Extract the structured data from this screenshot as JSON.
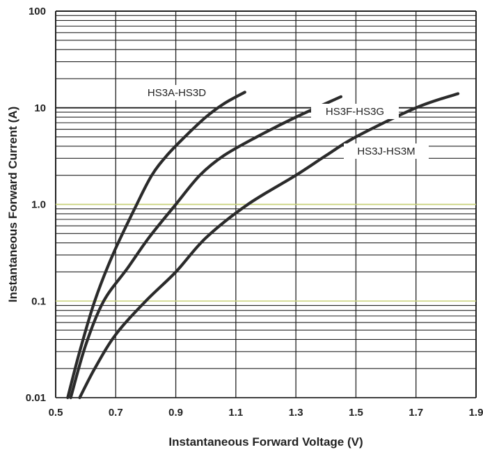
{
  "chart_data": {
    "type": "line",
    "xlabel": "Instantaneous Forward Voltage (V)",
    "ylabel": "Instantaneous Forward Current (A)",
    "xlim": [
      0.5,
      1.9
    ],
    "ylim": [
      0.01,
      100
    ],
    "y_scale": "log",
    "grid": true,
    "x_ticks": [
      "0.5",
      "0.7",
      "0.9",
      "1.1",
      "1.3",
      "1.5",
      "1.7",
      "1.9"
    ],
    "y_ticks": [
      "0.01",
      "0.1",
      "1.0",
      "10",
      "100"
    ],
    "series": [
      {
        "name": "HS3A-HS3D",
        "x": [
          0.54,
          0.58,
          0.63,
          0.69,
          0.77,
          0.82,
          0.87,
          0.93,
          1.0,
          1.06,
          1.13
        ],
        "y": [
          0.01,
          0.03,
          0.1,
          0.3,
          1.0,
          2.0,
          3.2,
          5.0,
          8.0,
          11.0,
          14.5
        ]
      },
      {
        "name": "HS3F-HS3G",
        "x": [
          0.55,
          0.6,
          0.66,
          0.74,
          0.81,
          0.9,
          0.98,
          1.06,
          1.17,
          1.3,
          1.45
        ],
        "y": [
          0.01,
          0.035,
          0.1,
          0.22,
          0.45,
          1.0,
          2.0,
          3.2,
          5.0,
          8.0,
          13.0
        ]
      },
      {
        "name": "HS3J-HS3M",
        "x": [
          0.58,
          0.63,
          0.7,
          0.8,
          0.9,
          1.0,
          1.14,
          1.3,
          1.4,
          1.5,
          1.7,
          1.84
        ],
        "y": [
          0.01,
          0.02,
          0.045,
          0.1,
          0.2,
          0.45,
          1.0,
          2.0,
          3.2,
          5.0,
          10.0,
          14.0
        ]
      }
    ]
  },
  "colors": {
    "grid": "#222222",
    "highlight_grid": "#c8d27a",
    "curve": "#2b2b2b"
  }
}
